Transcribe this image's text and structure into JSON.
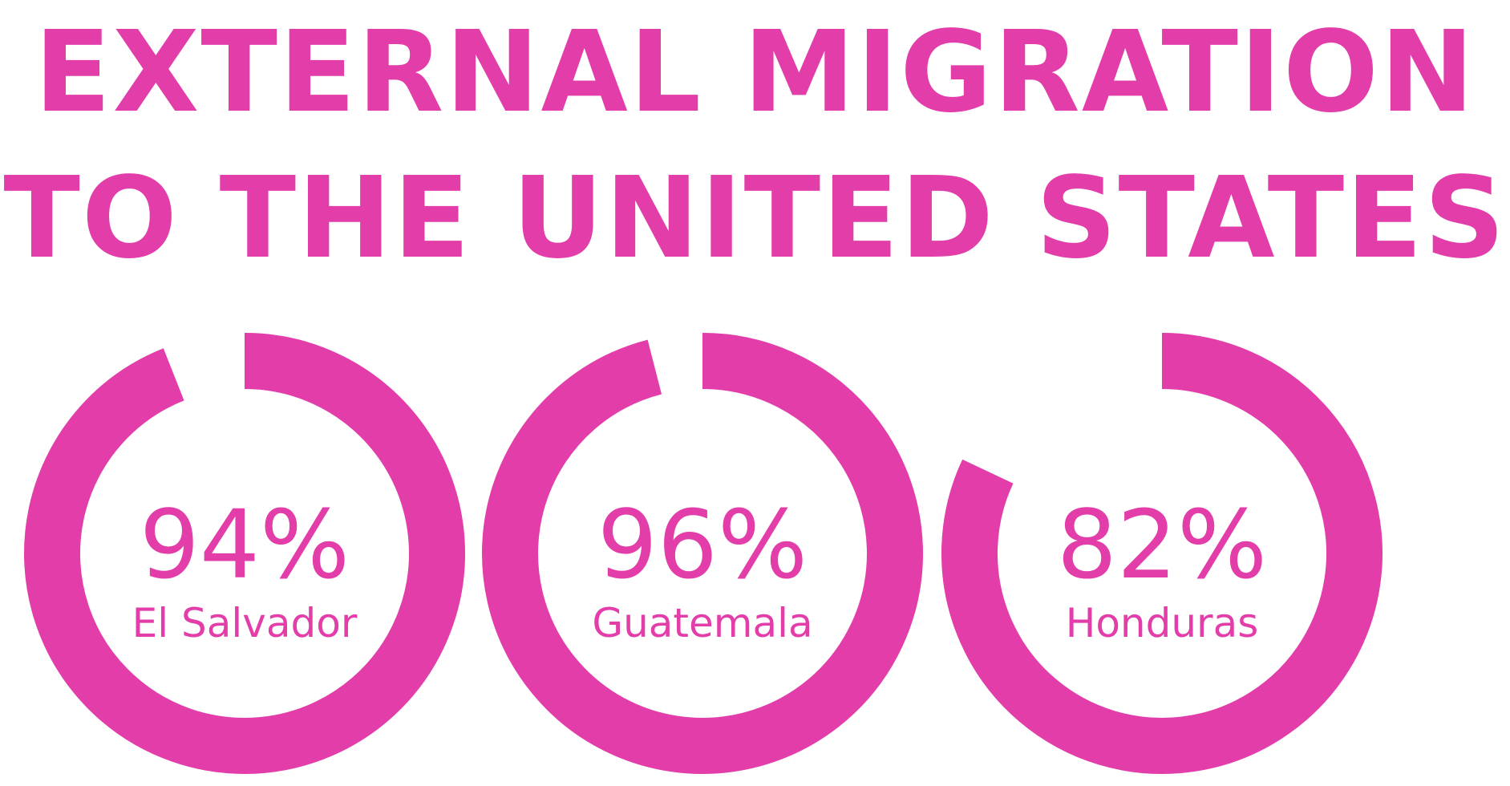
{
  "title": {
    "line1": "EXTERNAL MIGRATION",
    "line2": "TO THE UNITED STATES"
  },
  "colors": {
    "accent": "#e23da9",
    "background": "#ffffff"
  },
  "chart_data": {
    "type": "pie",
    "subtype": "donut",
    "title": "EXTERNAL MIGRATION TO THE UNITED STATES",
    "categories": [
      "El Salvador",
      "Guatemala",
      "Honduras"
    ],
    "values": [
      94,
      96,
      82
    ],
    "labels": [
      "94%",
      "96%",
      "82%"
    ],
    "unit": "%",
    "max": 100,
    "legend": "none",
    "grid": false
  }
}
